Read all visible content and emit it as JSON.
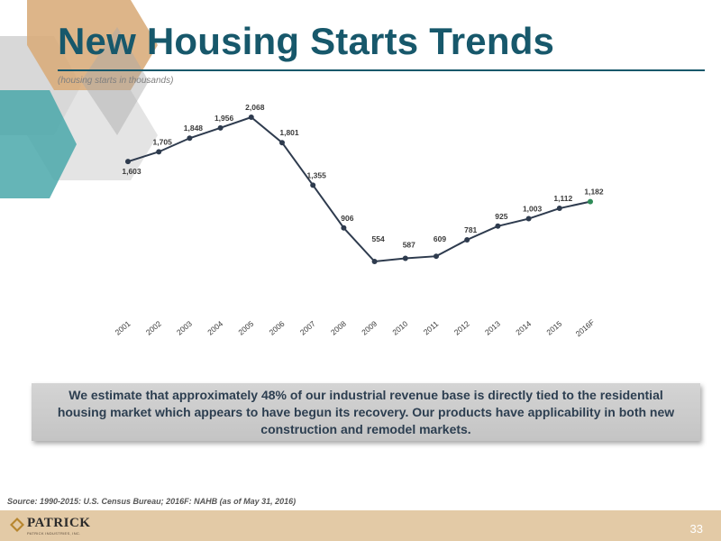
{
  "slide": {
    "title": "New Housing Starts Trends",
    "subtitle": "(housing starts in thousands)",
    "callout": "We estimate that approximately 48% of our industrial revenue base is directly tied to the residential housing market which appears to have begun its recovery.  Our products have applicability in both new construction and remodel markets.",
    "source": "Source: 1990-2015: U.S. Census Bureau; 2016F: NAHB (as of May 31, 2016)",
    "page_number": "33",
    "logo": {
      "name": "PATRICK",
      "tagline": "PATRICK INDUSTRIES, INC."
    }
  },
  "colors": {
    "title": "#17586b",
    "line": "#2e3b4e",
    "forecast_marker": "#2e8b57",
    "footer": "#e3caa6",
    "callout_text": "#2c3e50",
    "deco_teal": "#4aa8aa",
    "deco_tan": "#d9ad7c",
    "deco_gray": "#b8b8b8"
  },
  "chart_data": {
    "type": "line",
    "title": "",
    "xlabel": "",
    "ylabel": "",
    "grid": false,
    "categories": [
      "2001",
      "2002",
      "2003",
      "2004",
      "2005",
      "2006",
      "2007",
      "2008",
      "2009",
      "2010",
      "2011",
      "2012",
      "2013",
      "2014",
      "2015",
      "2016F"
    ],
    "values": [
      1603,
      1705,
      1848,
      1956,
      2068,
      1801,
      1355,
      906,
      554,
      587,
      609,
      781,
      925,
      1003,
      1112,
      1182
    ],
    "labels": [
      "1,603",
      "1,705",
      "1,848",
      "1,956",
      "2,068",
      "1,801",
      "1,355",
      "906",
      "554",
      "587",
      "609",
      "781",
      "925",
      "1,003",
      "1,112",
      "1,182"
    ]
  }
}
